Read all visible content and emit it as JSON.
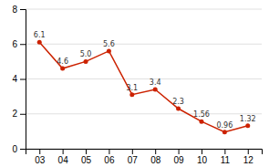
{
  "chart_data": {
    "type": "line",
    "categories": [
      "03",
      "04",
      "05",
      "06",
      "07",
      "08",
      "09",
      "10",
      "11",
      "12"
    ],
    "values": [
      6.1,
      4.6,
      5.0,
      5.6,
      3.1,
      3.4,
      2.3,
      1.56,
      0.96,
      1.32
    ],
    "value_labels": [
      "6.1",
      "4.6",
      "5.0",
      "5.6",
      "3.1",
      "3.4",
      "2.3",
      "1.56",
      "0.96",
      "1.32"
    ],
    "data_labels": true,
    "color": "#cc2200",
    "marker": "circle",
    "ylim": [
      0,
      8
    ],
    "yticks": [
      0,
      2,
      4,
      6,
      8
    ],
    "grid": true
  }
}
